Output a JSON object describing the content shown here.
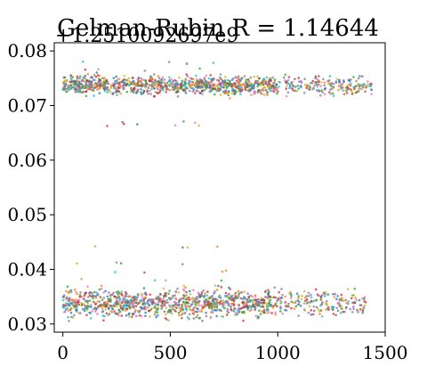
{
  "chart_data": {
    "type": "scatter",
    "title": "Gelman-Rubin R = 1.14644",
    "offset_text": "+1.2510092697e9",
    "xlabel": "",
    "ylabel": "",
    "xlim": [
      -40,
      1500
    ],
    "ylim": [
      0.0285,
      0.0815
    ],
    "x_ticks": [
      0,
      500,
      1000,
      1500
    ],
    "x_tick_labels": [
      "0",
      "500",
      "1000",
      "1500"
    ],
    "y_ticks": [
      0.03,
      0.04,
      0.05,
      0.06,
      0.07,
      0.08
    ],
    "y_tick_labels": [
      "0.03",
      "0.04",
      "0.05",
      "0.06",
      "0.07",
      "0.08"
    ],
    "grid": false,
    "legend": "none",
    "series_colors": [
      "#1f77b4",
      "#ff7f0e",
      "#2ca02c",
      "#d62728",
      "#9467bd",
      "#8c564b",
      "#e377c2",
      "#7f7f7f",
      "#bcbd22",
      "#17becf"
    ],
    "bands": [
      {
        "label": "upper cluster",
        "x_range": [
          0,
          1440
        ],
        "y_center": 0.0737,
        "y_spread": 0.0008,
        "outliers_y": [
          0.0665,
          0.0668,
          0.0765,
          0.0778
        ]
      },
      {
        "label": "lower cluster",
        "x_range": [
          0,
          1410
        ],
        "y_center": 0.0338,
        "y_spread": 0.0012,
        "outliers_y": [
          0.038,
          0.0395,
          0.041,
          0.044
        ]
      }
    ]
  }
}
